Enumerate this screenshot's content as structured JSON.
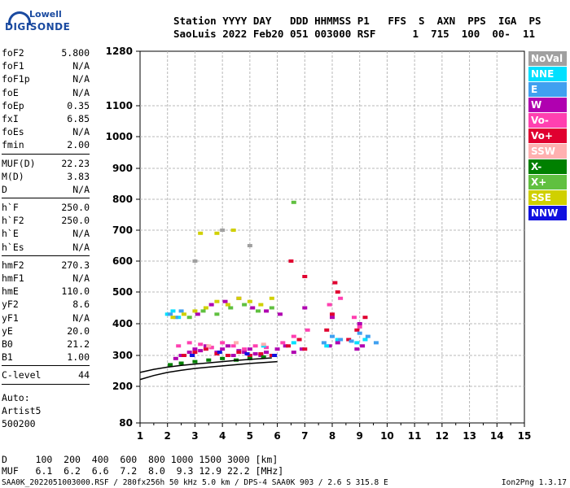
{
  "logo": {
    "brand": "Lowell",
    "product": "DIGISONDE"
  },
  "header": {
    "line1": "Station YYYY DAY   DDD HHMMSS P1   FFS  S  AXN  PPS  IGA  PS",
    "line2": "SaoLuis 2022 Feb20 051 003000 RSF      1  715  100  00-  11"
  },
  "params": [
    {
      "k": "foF2",
      "v": "5.800"
    },
    {
      "k": "foF1",
      "v": "N/A"
    },
    {
      "k": "foF1p",
      "v": "N/A"
    },
    {
      "k": "foE",
      "v": "N/A"
    },
    {
      "k": "foEp",
      "v": "0.35"
    },
    {
      "k": "fxI",
      "v": "6.85"
    },
    {
      "k": "foEs",
      "v": "N/A"
    },
    {
      "k": "fmin",
      "v": "2.00"
    },
    {
      "sep": true
    },
    {
      "k": "MUF(D)",
      "v": "22.23"
    },
    {
      "k": "M(D)",
      "v": "3.83"
    },
    {
      "k": "D",
      "v": "N/A"
    },
    {
      "sep": true
    },
    {
      "k": "h`F",
      "v": "250.0"
    },
    {
      "k": "h`F2",
      "v": "250.0"
    },
    {
      "k": "h`E",
      "v": "N/A"
    },
    {
      "k": "h`Es",
      "v": "N/A"
    },
    {
      "sep": true
    },
    {
      "k": "hmF2",
      "v": "270.3"
    },
    {
      "k": "hmF1",
      "v": "N/A"
    },
    {
      "k": "hmE",
      "v": "110.0"
    },
    {
      "k": "yF2",
      "v": "8.6"
    },
    {
      "k": "yF1",
      "v": "N/A"
    },
    {
      "k": "yE",
      "v": "20.0"
    },
    {
      "k": "B0",
      "v": "21.2"
    },
    {
      "k": "B1",
      "v": "1.00"
    },
    {
      "sep": true
    },
    {
      "k": "C-level",
      "v": "44"
    },
    {
      "sep": true
    }
  ],
  "auto": [
    "Auto:",
    "Artist5",
    "500200"
  ],
  "legend": [
    {
      "label": "NoVal",
      "color": "#a0a0a0"
    },
    {
      "label": "NNE",
      "color": "#00e0ff"
    },
    {
      "label": "E",
      "color": "#40a0f0"
    },
    {
      "label": "W",
      "color": "#b000b0"
    },
    {
      "label": "Vo-",
      "color": "#ff40b0"
    },
    {
      "label": "Vo+",
      "color": "#e00030"
    },
    {
      "label": "SSW",
      "color": "#ffb0b0"
    },
    {
      "label": "X-",
      "color": "#008000"
    },
    {
      "label": "X+",
      "color": "#60c040"
    },
    {
      "label": "SSE",
      "color": "#d0d000"
    },
    {
      "label": "NNW",
      "color": "#1010e0"
    }
  ],
  "bottom": {
    "d_line": "D     100  200  400  600  800 1000 1500 3000 [km]",
    "muf_line": "MUF   6.1  6.2  6.6  7.2  8.0  9.3 12.9 22.2 [MHz]"
  },
  "footer": {
    "left": "SAA0K_2022051003000.RSF / 280fx256h 50 kHz 5.0 km / DPS-4 SAA0K 903 / 2.6 S 315.8 E",
    "right": "Ion2Png 1.3.17"
  },
  "chart_data": {
    "type": "scatter",
    "xlim": [
      1,
      15
    ],
    "ylim": [
      80,
      1280
    ],
    "x_ticks": [
      1,
      2,
      3,
      4,
      5,
      6,
      7,
      8,
      9,
      10,
      11,
      12,
      13,
      14,
      15
    ],
    "y_ticks": [
      80,
      200,
      300,
      400,
      500,
      600,
      700,
      800,
      900,
      1000,
      1100,
      1280
    ],
    "grid": true,
    "legend_position": "right",
    "series": [
      {
        "name": "W",
        "color": "#b000b0",
        "x": [
          2.3,
          2.5,
          2.8,
          3.0,
          3.2,
          3.4,
          3.6,
          3.8,
          4.0,
          4.2,
          4.4,
          4.6,
          4.8,
          5.0,
          5.2,
          5.4,
          5.6,
          6.0,
          6.3,
          6.6,
          6.9,
          7.9,
          8.2,
          8.9,
          9.1,
          3.1,
          3.6,
          4.1,
          4.6,
          5.1,
          5.6,
          6.1,
          7.0,
          8.0,
          9.0
        ],
        "y": [
          290,
          300,
          310,
          320,
          315,
          330,
          325,
          310,
          320,
          330,
          300,
          315,
          310,
          320,
          305,
          300,
          310,
          320,
          330,
          310,
          320,
          330,
          340,
          320,
          330,
          430,
          460,
          470,
          480,
          450,
          440,
          430,
          450,
          420,
          400
        ]
      },
      {
        "name": "Vo+",
        "color": "#e00030",
        "x": [
          2.6,
          3.0,
          3.4,
          3.8,
          4.2,
          4.6,
          5.0,
          5.4,
          5.8,
          6.4,
          6.8,
          7.0,
          7.8,
          8.0,
          8.2,
          8.6,
          8.9,
          9.2,
          6.5,
          7.0,
          8.1
        ],
        "y": [
          300,
          310,
          320,
          305,
          300,
          310,
          300,
          305,
          300,
          330,
          350,
          320,
          380,
          430,
          500,
          350,
          380,
          420,
          600,
          550,
          530
        ]
      },
      {
        "name": "Vo-",
        "color": "#ff40b0",
        "x": [
          2.4,
          2.8,
          3.2,
          3.6,
          4.0,
          4.4,
          4.8,
          5.2,
          5.6,
          6.2,
          6.6,
          7.1,
          7.9,
          8.3,
          8.8,
          9.0
        ],
        "y": [
          330,
          340,
          335,
          325,
          340,
          330,
          320,
          330,
          325,
          340,
          360,
          380,
          460,
          480,
          420,
          390
        ]
      },
      {
        "name": "NNE",
        "color": "#00e0ff",
        "x": [
          2.0,
          2.2,
          2.4,
          5.5,
          6.6,
          7.8,
          8.2,
          8.9,
          9.2
        ],
        "y": [
          430,
          440,
          420,
          330,
          340,
          330,
          350,
          340,
          350
        ]
      },
      {
        "name": "E",
        "color": "#40a0f0",
        "x": [
          2.1,
          2.3,
          2.5,
          7.7,
          8.0,
          8.3,
          8.7,
          9.0,
          9.3,
          9.6
        ],
        "y": [
          430,
          420,
          440,
          340,
          360,
          350,
          345,
          370,
          360,
          340
        ]
      },
      {
        "name": "SSE",
        "color": "#d0d000",
        "x": [
          2.2,
          2.6,
          3.0,
          3.4,
          3.8,
          4.2,
          4.6,
          5.0,
          5.4,
          5.8,
          3.2,
          3.8,
          4.4
        ],
        "y": [
          420,
          430,
          440,
          450,
          470,
          460,
          480,
          470,
          460,
          480,
          690,
          690,
          700
        ]
      },
      {
        "name": "X+",
        "color": "#60c040",
        "x": [
          2.8,
          3.3,
          3.8,
          4.3,
          4.8,
          5.3,
          5.8,
          6.6
        ],
        "y": [
          420,
          440,
          430,
          450,
          460,
          440,
          450,
          790
        ]
      },
      {
        "name": "X-",
        "color": "#008000",
        "x": [
          2.1,
          2.5,
          3.0,
          3.5,
          4.0,
          4.5,
          5.0,
          5.5
        ],
        "y": [
          270,
          275,
          280,
          285,
          290,
          285,
          290,
          295
        ]
      },
      {
        "name": "NNW",
        "color": "#1010e0",
        "x": [
          2.9,
          3.9,
          4.9,
          5.9
        ],
        "y": [
          300,
          310,
          305,
          300
        ]
      },
      {
        "name": "SSW",
        "color": "#ffb0b0",
        "x": [
          3.5,
          4.5,
          5.5
        ],
        "y": [
          330,
          340,
          335
        ]
      },
      {
        "name": "NoVal",
        "color": "#a0a0a0",
        "x": [
          3.0,
          4.0,
          5.0
        ],
        "y": [
          600,
          700,
          650
        ]
      }
    ],
    "trace_lines": [
      {
        "name": "trace-upper",
        "color": "#000000",
        "x": [
          1.0,
          1.5,
          2.0,
          2.5,
          3.0,
          3.5,
          4.0,
          4.5,
          5.0,
          5.5,
          5.8
        ],
        "y": [
          245,
          255,
          262,
          268,
          272,
          276,
          280,
          284,
          287,
          290,
          292
        ]
      },
      {
        "name": "trace-lower",
        "color": "#000000",
        "x": [
          1.0,
          1.5,
          2.0,
          2.5,
          3.0,
          3.5,
          4.0,
          4.5,
          5.0,
          5.5,
          6.0
        ],
        "y": [
          222,
          235,
          245,
          252,
          258,
          262,
          266,
          270,
          274,
          277,
          280
        ]
      }
    ]
  }
}
